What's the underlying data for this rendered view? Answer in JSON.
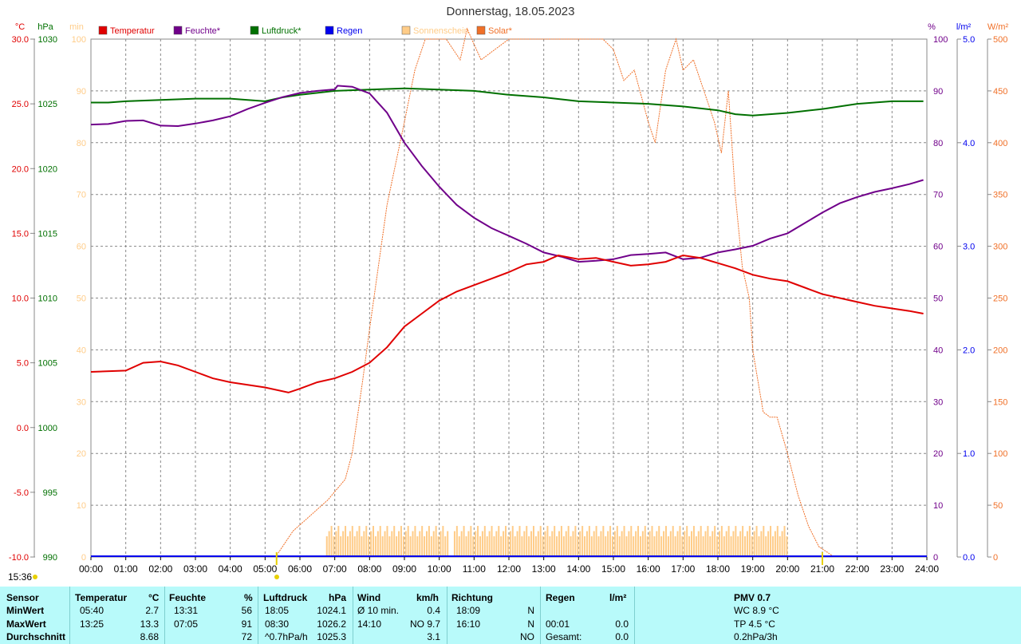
{
  "title": "Donnerstag, 18.05.2023",
  "timestamp": "15:36",
  "colors": {
    "temperature": "#e00000",
    "humidity": "#70008a",
    "pressure": "#007000",
    "rain": "#0000ee",
    "sunshine": "#ffcc88",
    "solar": "#f07028"
  },
  "chart_data": {
    "type": "line",
    "xlim": [
      0,
      24
    ],
    "x_ticks": [
      "00:00",
      "01:00",
      "02:00",
      "03:00",
      "04:00",
      "05:00",
      "06:00",
      "07:00",
      "08:00",
      "09:00",
      "10:00",
      "11:00",
      "12:00",
      "13:00",
      "14:00",
      "15:00",
      "16:00",
      "17:00",
      "18:00",
      "19:00",
      "20:00",
      "21:00",
      "22:00",
      "23:00",
      "24:00"
    ],
    "axes": {
      "temperature": {
        "unit": "°C",
        "range": [
          -10,
          30
        ],
        "ticks": [
          "30.0",
          "25.0",
          "20.0",
          "15.0",
          "10.0",
          "5.0",
          "0.0",
          "-5.0",
          "-10.0"
        ]
      },
      "pressure": {
        "unit": "hPa",
        "range": [
          990,
          1030
        ],
        "ticks": [
          "1030",
          "1025",
          "1020",
          "1015",
          "1010",
          "1005",
          "1000",
          "995",
          "990"
        ]
      },
      "sunshine": {
        "unit": "min",
        "range": [
          0,
          100
        ],
        "ticks": [
          "100",
          "90",
          "80",
          "70",
          "60",
          "50",
          "40",
          "30",
          "20",
          "10",
          "0"
        ]
      },
      "humidity": {
        "unit": "%",
        "range": [
          0,
          100
        ],
        "ticks": [
          "100",
          "90",
          "80",
          "70",
          "60",
          "50",
          "40",
          "30",
          "20",
          "10",
          "0"
        ]
      },
      "rain": {
        "unit": "l/m²",
        "range": [
          0,
          5
        ],
        "ticks": [
          "5.0",
          "4.0",
          "3.0",
          "2.0",
          "1.0",
          "0.0"
        ]
      },
      "solar": {
        "unit": "W/m²",
        "range": [
          0,
          500
        ],
        "ticks": [
          "500",
          "450",
          "400",
          "350",
          "300",
          "250",
          "200",
          "150",
          "100",
          "50",
          "0"
        ]
      }
    },
    "legend": [
      {
        "key": "temperature",
        "label": "Temperatur"
      },
      {
        "key": "humidity",
        "label": "Feuchte*"
      },
      {
        "key": "pressure",
        "label": "Luftdruck*"
      },
      {
        "key": "rain",
        "label": "Regen"
      },
      {
        "key": "sunshine",
        "label": "Sonnenschein"
      },
      {
        "key": "solar",
        "label": "Solar*"
      }
    ],
    "series": {
      "temperature": [
        [
          0,
          4.3
        ],
        [
          1,
          4.4
        ],
        [
          1.5,
          5.0
        ],
        [
          2,
          5.1
        ],
        [
          2.5,
          4.8
        ],
        [
          3,
          4.3
        ],
        [
          3.5,
          3.8
        ],
        [
          4,
          3.5
        ],
        [
          4.5,
          3.3
        ],
        [
          5,
          3.1
        ],
        [
          5.67,
          2.7
        ],
        [
          6,
          3.0
        ],
        [
          6.5,
          3.5
        ],
        [
          7,
          3.8
        ],
        [
          7.5,
          4.3
        ],
        [
          8,
          5.0
        ],
        [
          8.5,
          6.2
        ],
        [
          9,
          7.8
        ],
        [
          9.5,
          8.8
        ],
        [
          10,
          9.8
        ],
        [
          10.5,
          10.5
        ],
        [
          11,
          11.0
        ],
        [
          11.5,
          11.5
        ],
        [
          12,
          12.0
        ],
        [
          12.5,
          12.6
        ],
        [
          13,
          12.8
        ],
        [
          13.42,
          13.3
        ],
        [
          14,
          13.0
        ],
        [
          14.5,
          13.1
        ],
        [
          15,
          12.8
        ],
        [
          15.5,
          12.5
        ],
        [
          16,
          12.6
        ],
        [
          16.5,
          12.8
        ],
        [
          17,
          13.3
        ],
        [
          17.5,
          13.1
        ],
        [
          18,
          12.7
        ],
        [
          18.5,
          12.3
        ],
        [
          19,
          11.8
        ],
        [
          19.5,
          11.5
        ],
        [
          20,
          11.3
        ],
        [
          20.5,
          10.8
        ],
        [
          21,
          10.3
        ],
        [
          21.5,
          10.0
        ],
        [
          22,
          9.7
        ],
        [
          22.5,
          9.4
        ],
        [
          23,
          9.2
        ],
        [
          23.5,
          9.0
        ],
        [
          23.9,
          8.8
        ]
      ],
      "humidity": [
        [
          0,
          83.5
        ],
        [
          0.5,
          83.6
        ],
        [
          1,
          84.2
        ],
        [
          1.5,
          84.3
        ],
        [
          2,
          83.3
        ],
        [
          2.5,
          83.2
        ],
        [
          3,
          83.7
        ],
        [
          3.5,
          84.3
        ],
        [
          4,
          85.1
        ],
        [
          4.5,
          86.5
        ],
        [
          5,
          87.7
        ],
        [
          5.5,
          88.8
        ],
        [
          6,
          89.6
        ],
        [
          6.5,
          90.0
        ],
        [
          7,
          90.3
        ],
        [
          7.08,
          91.0
        ],
        [
          7.5,
          90.8
        ],
        [
          8,
          89.5
        ],
        [
          8.5,
          85.8
        ],
        [
          9,
          80.0
        ],
        [
          9.5,
          75.5
        ],
        [
          10,
          71.5
        ],
        [
          10.5,
          68.0
        ],
        [
          11,
          65.5
        ],
        [
          11.5,
          63.5
        ],
        [
          12,
          62.0
        ],
        [
          12.5,
          60.5
        ],
        [
          13,
          58.8
        ],
        [
          13.5,
          58.0
        ],
        [
          14,
          57.0
        ],
        [
          14.5,
          57.2
        ],
        [
          15,
          57.5
        ],
        [
          15.5,
          58.3
        ],
        [
          16,
          58.5
        ],
        [
          16.5,
          58.8
        ],
        [
          17,
          57.5
        ],
        [
          17.5,
          57.8
        ],
        [
          18,
          58.8
        ],
        [
          18.5,
          59.4
        ],
        [
          19,
          60.1
        ],
        [
          19.5,
          61.5
        ],
        [
          20,
          62.5
        ],
        [
          20.5,
          64.5
        ],
        [
          21,
          66.5
        ],
        [
          21.5,
          68.3
        ],
        [
          22,
          69.5
        ],
        [
          22.5,
          70.5
        ],
        [
          23,
          71.2
        ],
        [
          23.5,
          72.0
        ],
        [
          23.9,
          72.8
        ]
      ],
      "pressure": [
        [
          0,
          1025.1
        ],
        [
          0.5,
          1025.1
        ],
        [
          1,
          1025.2
        ],
        [
          2,
          1025.3
        ],
        [
          3,
          1025.4
        ],
        [
          4,
          1025.4
        ],
        [
          5,
          1025.2
        ],
        [
          5.5,
          1025.5
        ],
        [
          6,
          1025.7
        ],
        [
          7,
          1026.0
        ],
        [
          8,
          1026.1
        ],
        [
          9,
          1026.2
        ],
        [
          10,
          1026.1
        ],
        [
          11,
          1026.0
        ],
        [
          12,
          1025.7
        ],
        [
          13,
          1025.5
        ],
        [
          14,
          1025.2
        ],
        [
          15,
          1025.1
        ],
        [
          16,
          1025.0
        ],
        [
          17,
          1024.8
        ],
        [
          18,
          1024.5
        ],
        [
          18.5,
          1024.2
        ],
        [
          19,
          1024.1
        ],
        [
          20,
          1024.3
        ],
        [
          21,
          1024.6
        ],
        [
          22,
          1025.0
        ],
        [
          23,
          1025.2
        ],
        [
          23.9,
          1025.2
        ]
      ],
      "solar": [
        [
          5.3,
          0
        ],
        [
          5.8,
          25
        ],
        [
          6.3,
          40
        ],
        [
          6.8,
          55
        ],
        [
          7.3,
          75
        ],
        [
          7.5,
          100
        ],
        [
          7.8,
          170
        ],
        [
          8.0,
          220
        ],
        [
          8.5,
          340
        ],
        [
          9.0,
          420
        ],
        [
          9.3,
          470
        ],
        [
          9.6,
          500
        ],
        [
          9.7,
          500
        ],
        [
          10.2,
          500
        ],
        [
          10.6,
          480
        ],
        [
          10.8,
          510
        ],
        [
          11.2,
          480
        ],
        [
          11.6,
          490
        ],
        [
          12,
          500
        ],
        [
          13,
          500
        ],
        [
          14,
          500
        ],
        [
          14.7,
          500
        ],
        [
          15.0,
          490
        ],
        [
          15.3,
          460
        ],
        [
          15.6,
          470
        ],
        [
          16.0,
          420
        ],
        [
          16.2,
          400
        ],
        [
          16.5,
          470
        ],
        [
          16.8,
          500
        ],
        [
          17.0,
          470
        ],
        [
          17.3,
          480
        ],
        [
          17.6,
          450
        ],
        [
          17.9,
          420
        ],
        [
          18.1,
          390
        ],
        [
          18.3,
          450
        ],
        [
          18.5,
          350
        ],
        [
          18.7,
          280
        ],
        [
          18.9,
          250
        ],
        [
          19.0,
          200
        ],
        [
          19.1,
          180
        ],
        [
          19.3,
          140
        ],
        [
          19.5,
          135
        ],
        [
          19.7,
          135
        ],
        [
          20.0,
          100
        ],
        [
          20.3,
          60
        ],
        [
          20.6,
          30
        ],
        [
          20.9,
          10
        ],
        [
          21.3,
          1
        ],
        [
          21.7,
          0
        ]
      ],
      "sunshine": [
        [
          6.75,
          10
        ],
        [
          7.5,
          10
        ],
        [
          8,
          10
        ],
        [
          9,
          10
        ],
        [
          10,
          10
        ],
        [
          10.25,
          12
        ],
        [
          11,
          10
        ],
        [
          12,
          10
        ],
        [
          13,
          10
        ],
        [
          14,
          10
        ],
        [
          15,
          10
        ],
        [
          16,
          10
        ],
        [
          17,
          10
        ],
        [
          18,
          10
        ],
        [
          19,
          10
        ],
        [
          19.5,
          10
        ],
        [
          20,
          10
        ]
      ],
      "sunshine_bars": {
        "start": 6.75,
        "end": 20.0,
        "value_min": 4,
        "value_max": 6,
        "gap": [
          10.25,
          10.4
        ]
      }
    }
  },
  "stats": {
    "headers": {
      "sensor": "Sensor",
      "temp": "Temperatur",
      "temp_unit": "°C",
      "hum": "Feuchte",
      "hum_unit": "%",
      "press": "Luftdruck",
      "press_unit": "hPa",
      "wind": "Wind",
      "wind_unit": "km/h",
      "dir": "Richtung",
      "rain": "Regen",
      "rain_unit": "l/m²",
      "pmv": "PMV 0.7"
    },
    "rows": [
      {
        "label": "MinWert",
        "temp_time": "05:40",
        "temp_val": "2.7",
        "hum_time": "13:31",
        "hum_val": "56",
        "press_time": "18:05",
        "press_val": "1024.1",
        "wind_label": "Ø 10 min.",
        "wind_val": "0.4",
        "dir_time": "18:09",
        "dir_val": "N",
        "rain_time": "",
        "rain_val": "",
        "extra": "WC 8.9 °C"
      },
      {
        "label": "MaxWert",
        "temp_time": "13:25",
        "temp_val": "13.3",
        "hum_time": "07:05",
        "hum_val": "91",
        "press_time": "08:30",
        "press_val": "1026.2",
        "wind_label": "14:10",
        "wind_val": "NO 9.7",
        "dir_time": "16:10",
        "dir_val": "N",
        "rain_time": "00:01",
        "rain_val": "0.0",
        "extra": "TP 4.5 °C"
      },
      {
        "label": "Durchschnitt",
        "temp_time": "",
        "temp_val": "8.68",
        "hum_time": "",
        "hum_val": "72",
        "press_time": "^0.7hPa/h",
        "press_val": "1025.3",
        "wind_label": "",
        "wind_val": "3.1",
        "dir_time": "",
        "dir_val": "NO",
        "rain_time": "Gesamt:",
        "rain_val": "0.0",
        "extra": "0.2hPa/3h"
      }
    ]
  }
}
